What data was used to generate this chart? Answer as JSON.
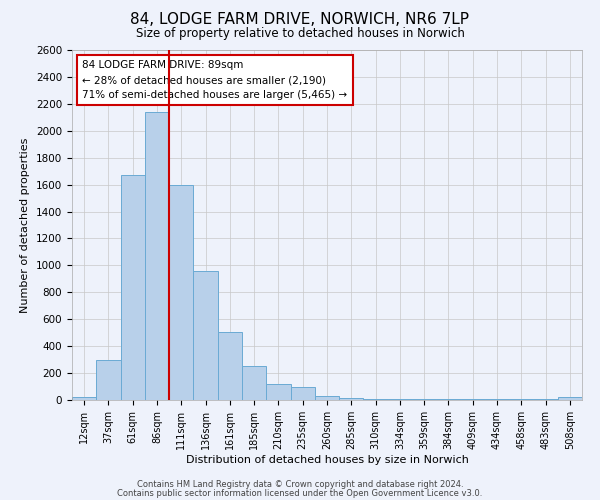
{
  "title": "84, LODGE FARM DRIVE, NORWICH, NR6 7LP",
  "subtitle": "Size of property relative to detached houses in Norwich",
  "xlabel": "Distribution of detached houses by size in Norwich",
  "ylabel": "Number of detached properties",
  "bin_labels": [
    "12sqm",
    "37sqm",
    "61sqm",
    "86sqm",
    "111sqm",
    "136sqm",
    "161sqm",
    "185sqm",
    "210sqm",
    "235sqm",
    "260sqm",
    "285sqm",
    "310sqm",
    "334sqm",
    "359sqm",
    "384sqm",
    "409sqm",
    "434sqm",
    "458sqm",
    "483sqm",
    "508sqm"
  ],
  "bar_heights": [
    20,
    295,
    1670,
    2140,
    1600,
    960,
    505,
    255,
    120,
    95,
    30,
    15,
    5,
    5,
    5,
    5,
    5,
    5,
    5,
    5,
    20
  ],
  "bar_color": "#b8d0ea",
  "bar_edge_color": "#6aaad4",
  "background_color": "#eef2fb",
  "grid_color": "#c8c8c8",
  "ylim": [
    0,
    2600
  ],
  "yticks": [
    0,
    200,
    400,
    600,
    800,
    1000,
    1200,
    1400,
    1600,
    1800,
    2000,
    2200,
    2400,
    2600
  ],
  "property_line_color": "#cc0000",
  "annotation_text": "84 LODGE FARM DRIVE: 89sqm\n← 28% of detached houses are smaller (2,190)\n71% of semi-detached houses are larger (5,465) →",
  "annotation_box_color": "#ffffff",
  "annotation_box_edge_color": "#cc0000",
  "footnote1": "Contains HM Land Registry data © Crown copyright and database right 2024.",
  "footnote2": "Contains public sector information licensed under the Open Government Licence v3.0."
}
